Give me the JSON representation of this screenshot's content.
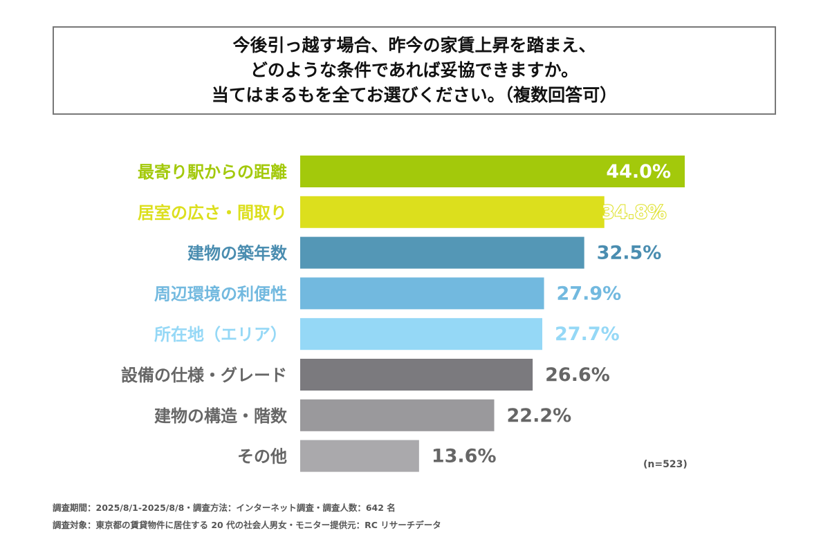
{
  "title_lines": [
    "今後引っ越す場合、昨今の家賃上昇を踏まえ、",
    "どのような条件であれば妥協できますか。",
    "当てはまるもを全てお選びください。（複数回答可）"
  ],
  "chart_data": {
    "type": "bar",
    "orientation": "horizontal",
    "categories": [
      "最寄り駅からの距離",
      "居室の広さ・間取り",
      "建物の築年数",
      "周辺環境の利便性",
      "所在地（エリア）",
      "設備の仕様・グレード",
      "建物の構造・階数",
      "その他"
    ],
    "values": [
      44.0,
      34.8,
      32.5,
      27.9,
      27.7,
      26.6,
      22.2,
      13.6
    ],
    "value_labels": [
      "44.0%",
      "34.8%",
      "32.5%",
      "27.9%",
      "27.7%",
      "26.6%",
      "22.2%",
      "13.6%"
    ],
    "unit": "%",
    "colors": [
      "#a3c90b",
      "#dcdf1d",
      "#5497b6",
      "#72b9df",
      "#95d8f6",
      "#7b7a7e",
      "#9a999c",
      "#aaa9ac"
    ],
    "label_colors": [
      "#a3c90b",
      "#dcdf1d",
      "#4a8db0",
      "#72b9df",
      "#95d8f6",
      "#666666",
      "#666666",
      "#666666"
    ],
    "xlim": [
      0,
      44.0
    ],
    "grid": false,
    "axes_visible": false
  },
  "sample_size": "(n=523)",
  "notes": [
    "調査期間：2025/8/1-2025/8/8・調査方法：インターネット調査・調査人数：642 名",
    "調査対象：東京都の賃貸物件に居住する 20 代の社会人男女・モニター提供元：RC リサーチデータ"
  ]
}
